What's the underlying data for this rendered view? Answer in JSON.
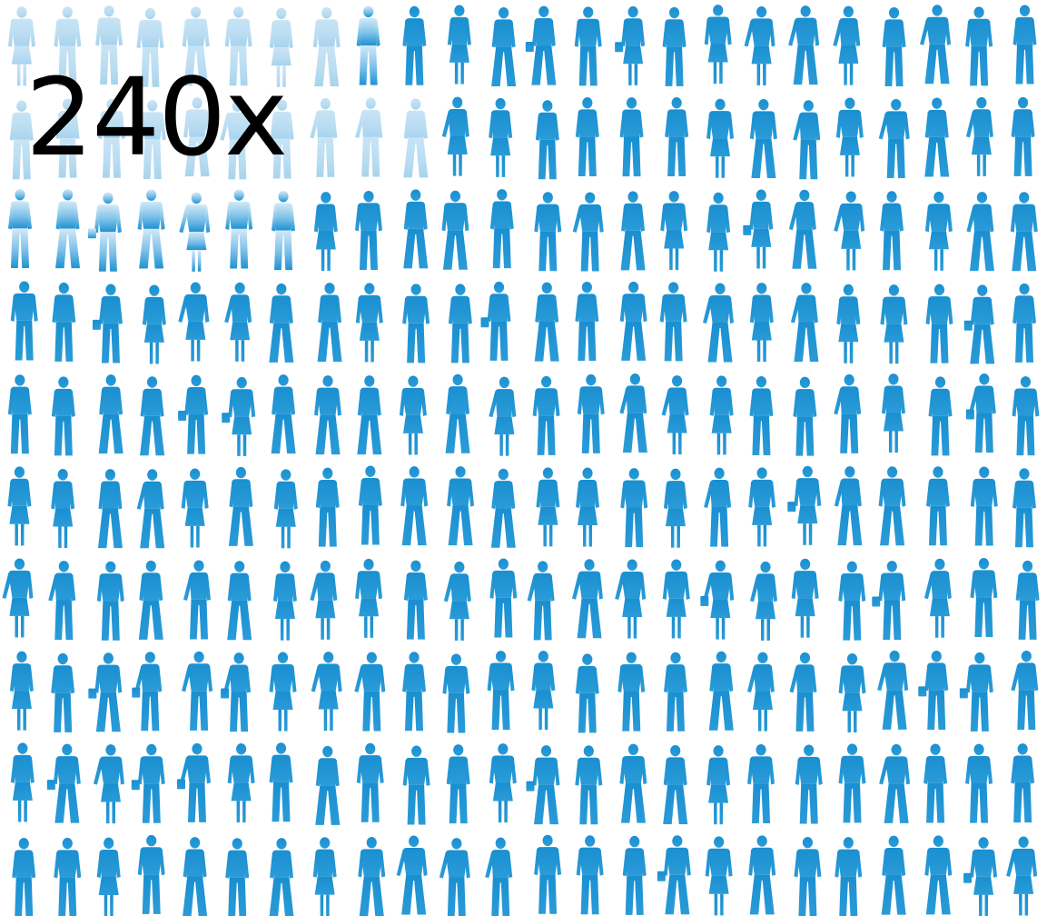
{
  "headline": {
    "count_label": "240x"
  },
  "grid": {
    "rows": 10,
    "columns": 24,
    "figure_count": 240,
    "icon": "person-silhouette-icon",
    "colors": {
      "figure": "#1a8fd0",
      "figure_light": "#5ab4e6",
      "figure_faded": "#c3e1f3"
    }
  }
}
